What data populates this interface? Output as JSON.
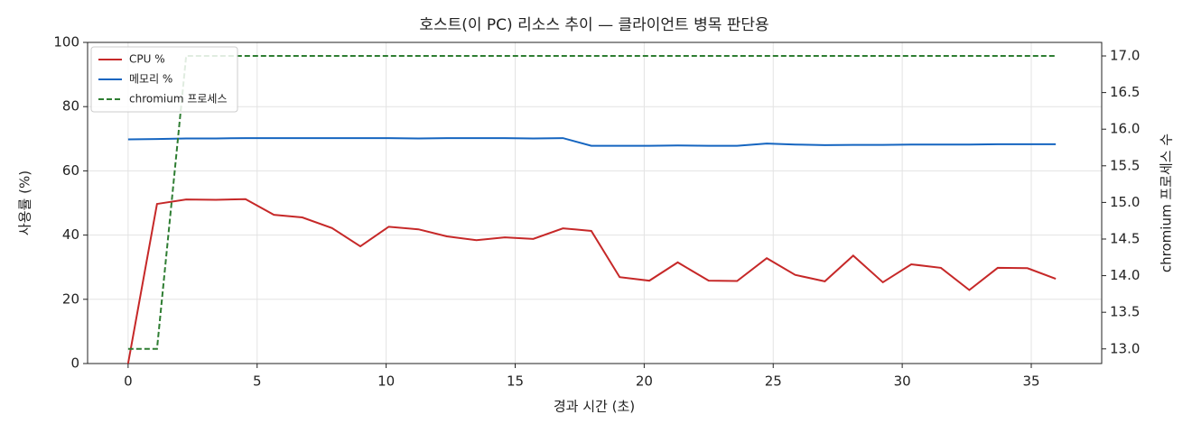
{
  "chart_data": {
    "type": "line",
    "title": "호스트(이 PC) 리소스 추이 — 클라이언트 병목 판단용",
    "xlabel": "경과 시간 (초)",
    "ylabel": "사용률 (%)",
    "y2label": "chromium 프로세스 수",
    "x": [
      0,
      1.12,
      2.25,
      3.4,
      4.55,
      5.65,
      6.75,
      7.9,
      9.0,
      10.1,
      11.25,
      12.35,
      13.5,
      14.6,
      15.7,
      16.85,
      17.95,
      19.05,
      20.2,
      21.3,
      22.5,
      23.6,
      24.75,
      25.85,
      27.0,
      28.1,
      29.25,
      30.35,
      31.5,
      32.6,
      33.7,
      34.85,
      35.95
    ],
    "series": [
      {
        "name": "CPU %",
        "color": "#c62828",
        "values": [
          0,
          49.7,
          51.1,
          51.0,
          51.2,
          46.3,
          45.5,
          42.2,
          36.5,
          42.6,
          41.8,
          39.6,
          38.4,
          39.3,
          38.8,
          42.1,
          41.3,
          26.9,
          25.8,
          31.5,
          25.8,
          25.7,
          32.8,
          27.6,
          25.6,
          33.6,
          25.3,
          30.9,
          29.8,
          22.9,
          29.8,
          29.7,
          26.4
        ]
      },
      {
        "name": "메모리 %",
        "color": "#1565c0",
        "values": [
          69.8,
          69.9,
          70.1,
          70.1,
          70.2,
          70.2,
          70.2,
          70.2,
          70.2,
          70.2,
          70.1,
          70.2,
          70.2,
          70.2,
          70.1,
          70.2,
          67.8,
          67.8,
          67.8,
          67.9,
          67.8,
          67.8,
          68.5,
          68.2,
          68.0,
          68.1,
          68.1,
          68.2,
          68.2,
          68.2,
          68.3,
          68.3,
          68.3
        ]
      },
      {
        "name": "chromium 프로세스",
        "color": "#2e7d32",
        "linestyle": "dashed",
        "axis": "y2",
        "values": [
          13,
          13,
          17,
          17,
          17,
          17,
          17,
          17,
          17,
          17,
          17,
          17,
          17,
          17,
          17,
          17,
          17,
          17,
          17,
          17,
          17,
          17,
          17,
          17,
          17,
          17,
          17,
          17,
          17,
          17,
          17,
          17,
          17
        ]
      }
    ],
    "xlim": [
      -1.57,
      37.73
    ],
    "xticks": [
      0,
      5,
      10,
      15,
      20,
      25,
      30,
      35
    ],
    "ylim": [
      0,
      100
    ],
    "yticks": [
      0,
      20,
      40,
      60,
      80,
      100
    ],
    "y2lim": [
      12.8,
      17.185
    ],
    "y2ticks": [
      {
        "value": 13,
        "label": "13.0"
      },
      13.5,
      {
        "value": 14,
        "label": "14.0"
      },
      14.5,
      {
        "value": 15,
        "label": "15.0"
      },
      15.5,
      {
        "value": 16,
        "label": "16.0"
      },
      16.5,
      {
        "value": 17,
        "label": "17.0"
      }
    ],
    "grid": true,
    "legend": "upper-left"
  }
}
